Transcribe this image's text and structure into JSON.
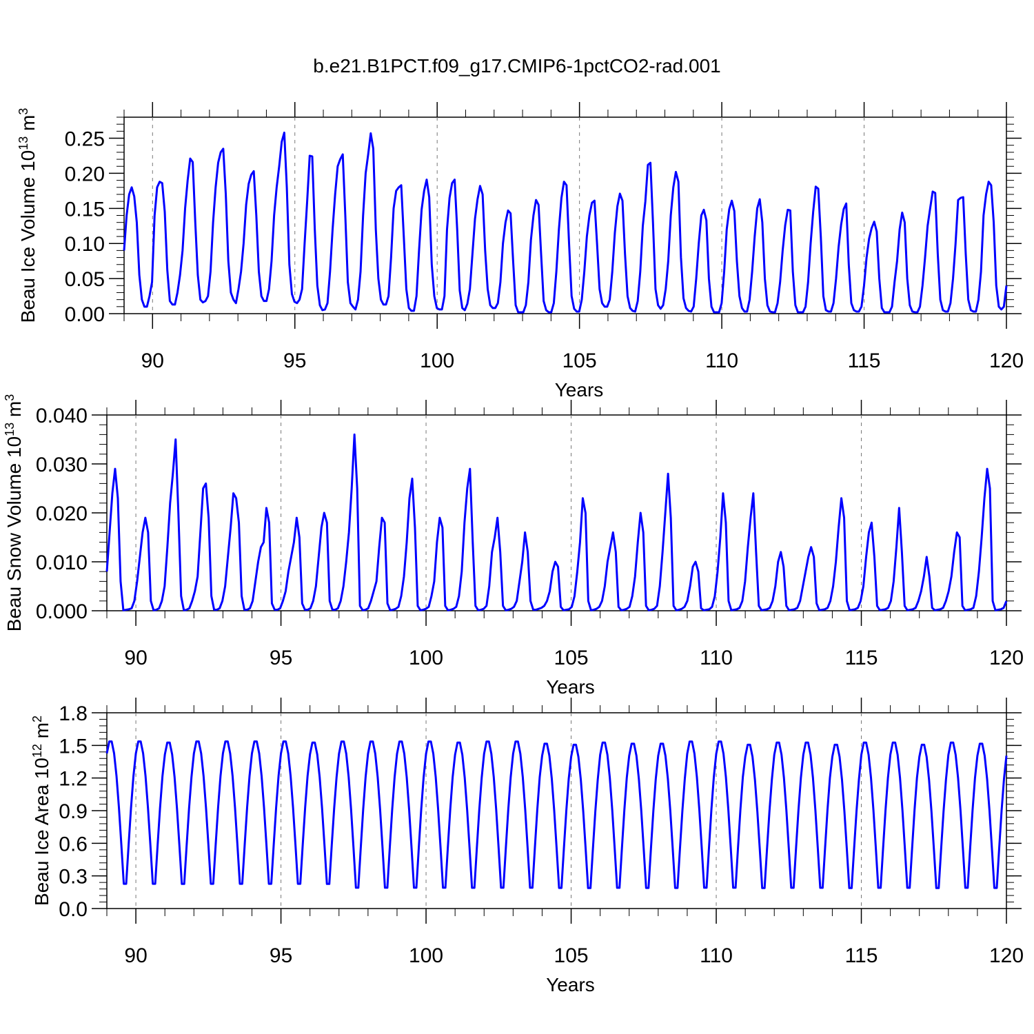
{
  "title": "b.e21.B1PCT.f09_g17.CMIP6-1pctCO2-rad.001",
  "series_color": "#0000ff",
  "chart_data": [
    {
      "type": "line",
      "ylabel": "Beau Ice Volume 10",
      "ylabel_exp": "13",
      "ylabel_unit": " m",
      "ylabel_unit_exp": "3",
      "xlabel": "Years",
      "xlim": [
        89.0,
        120.0
      ],
      "ylim": [
        0.0,
        0.28
      ],
      "xticks": [
        "90",
        "95",
        "100",
        "105",
        "110",
        "115",
        "120"
      ],
      "yticks": [
        "0.00",
        "0.05",
        "0.10",
        "0.15",
        "0.20",
        "0.25"
      ],
      "grid": "vertical dashed at major x ticks",
      "year_start": 89,
      "series": [
        {
          "values": [
            0.09,
            0.14,
            0.17,
            0.18,
            0.167,
            0.13,
            0.055,
            0.02,
            0.01,
            0.01,
            0.025,
            0.045,
            0.14,
            0.18,
            0.188,
            0.186,
            0.145,
            0.062,
            0.018,
            0.013,
            0.013,
            0.03,
            0.055,
            0.09,
            0.15,
            0.19,
            0.221,
            0.216,
            0.13,
            0.055,
            0.02,
            0.016,
            0.018,
            0.025,
            0.06,
            0.13,
            0.18,
            0.215,
            0.23,
            0.235,
            0.17,
            0.075,
            0.03,
            0.02,
            0.015,
            0.035,
            0.06,
            0.1,
            0.155,
            0.185,
            0.198,
            0.203,
            0.14,
            0.06,
            0.025,
            0.018,
            0.018,
            0.035,
            0.075,
            0.14,
            0.18,
            0.21,
            0.245,
            0.258,
            0.18,
            0.07,
            0.028,
            0.017,
            0.015,
            0.02,
            0.035,
            0.1,
            0.16,
            0.225,
            0.224,
            0.12,
            0.04,
            0.012,
            0.005,
            0.006,
            0.015,
            0.06,
            0.12,
            0.17,
            0.21,
            0.22,
            0.227,
            0.14,
            0.045,
            0.015,
            0.01,
            0.006,
            0.02,
            0.06,
            0.14,
            0.2,
            0.227,
            0.257,
            0.235,
            0.12,
            0.05,
            0.02,
            0.013,
            0.013,
            0.025,
            0.08,
            0.15,
            0.175,
            0.18,
            0.183,
            0.11,
            0.035,
            0.008,
            0.004,
            0.004,
            0.025,
            0.09,
            0.148,
            0.175,
            0.191,
            0.166,
            0.07,
            0.025,
            0.008,
            0.006,
            0.006,
            0.025,
            0.12,
            0.165,
            0.186,
            0.191,
            0.12,
            0.033,
            0.008,
            0.005,
            0.014,
            0.035,
            0.085,
            0.135,
            0.163,
            0.182,
            0.17,
            0.09,
            0.035,
            0.012,
            0.008,
            0.008,
            0.015,
            0.045,
            0.1,
            0.13,
            0.147,
            0.143,
            0.075,
            0.012,
            0.002,
            0.002,
            0.002,
            0.012,
            0.045,
            0.105,
            0.14,
            0.162,
            0.155,
            0.085,
            0.018,
            0.005,
            0.002,
            0.002,
            0.015,
            0.06,
            0.12,
            0.165,
            0.188,
            0.183,
            0.1,
            0.025,
            0.007,
            0.003,
            0.003,
            0.02,
            0.06,
            0.11,
            0.14,
            0.158,
            0.161,
            0.1,
            0.035,
            0.015,
            0.01,
            0.01,
            0.02,
            0.06,
            0.115,
            0.153,
            0.171,
            0.161,
            0.085,
            0.025,
            0.008,
            0.004,
            0.003,
            0.018,
            0.06,
            0.125,
            0.16,
            0.212,
            0.215,
            0.13,
            0.035,
            0.012,
            0.007,
            0.012,
            0.035,
            0.075,
            0.14,
            0.18,
            0.202,
            0.188,
            0.08,
            0.022,
            0.008,
            0.004,
            0.003,
            0.01,
            0.05,
            0.1,
            0.14,
            0.148,
            0.133,
            0.05,
            0.01,
            0.002,
            0.002,
            0.002,
            0.015,
            0.06,
            0.12,
            0.149,
            0.161,
            0.146,
            0.075,
            0.025,
            0.008,
            0.003,
            0.003,
            0.02,
            0.06,
            0.11,
            0.15,
            0.163,
            0.13,
            0.05,
            0.012,
            0.003,
            0.002,
            0.002,
            0.015,
            0.045,
            0.09,
            0.126,
            0.148,
            0.147,
            0.06,
            0.012,
            0.002,
            0.002,
            0.002,
            0.01,
            0.045,
            0.1,
            0.145,
            0.181,
            0.178,
            0.11,
            0.025,
            0.005,
            0.003,
            0.003,
            0.015,
            0.05,
            0.095,
            0.127,
            0.149,
            0.157,
            0.07,
            0.015,
            0.005,
            0.003,
            0.003,
            0.01,
            0.04,
            0.08,
            0.107,
            0.122,
            0.131,
            0.117,
            0.05,
            0.008,
            0.002,
            0.002,
            0.002,
            0.01,
            0.045,
            0.075,
            0.12,
            0.144,
            0.13,
            0.05,
            0.012,
            0.003,
            0.002,
            0.002,
            0.01,
            0.04,
            0.08,
            0.125,
            0.15,
            0.174,
            0.172,
            0.085,
            0.02,
            0.005,
            0.003,
            0.003,
            0.015,
            0.05,
            0.1,
            0.162,
            0.165,
            0.166,
            0.085,
            0.02,
            0.005,
            0.003,
            0.003,
            0.02,
            0.06,
            0.14,
            0.17,
            0.188,
            0.183,
            0.13,
            0.04,
            0.01,
            0.006,
            0.01,
            0.04
          ]
        }
      ]
    },
    {
      "type": "line",
      "ylabel": "Beau Snow Volume 10",
      "ylabel_exp": "13",
      "ylabel_unit": " m",
      "ylabel_unit_exp": "3",
      "xlabel": "Years",
      "xlim": [
        89.0,
        120.0
      ],
      "ylim": [
        0.0,
        0.04
      ],
      "xticks": [
        "90",
        "95",
        "100",
        "105",
        "110",
        "115",
        "120"
      ],
      "yticks": [
        "0.000",
        "0.010",
        "0.020",
        "0.030",
        "0.040"
      ],
      "grid": "vertical dashed at major x ticks",
      "year_start": 89,
      "series": [
        {
          "values": [
            0.008,
            0.016,
            0.024,
            0.029,
            0.023,
            0.006,
            0.0001,
            0.0002,
            0.0003,
            0.0005,
            0.002,
            0.006,
            0.011,
            0.016,
            0.019,
            0.016,
            0.002,
            0.0001,
            0.0002,
            0.0005,
            0.002,
            0.005,
            0.013,
            0.022,
            0.028,
            0.035,
            0.02,
            0.003,
            0.0001,
            0.0002,
            0.0005,
            0.002,
            0.004,
            0.007,
            0.016,
            0.025,
            0.026,
            0.019,
            0.003,
            0.0002,
            0.0002,
            0.0005,
            0.002,
            0.005,
            0.011,
            0.017,
            0.024,
            0.023,
            0.018,
            0.003,
            0.0002,
            0.0002,
            0.0005,
            0.002,
            0.006,
            0.01,
            0.013,
            0.014,
            0.021,
            0.018,
            0.0015,
            0.0002,
            0.0002,
            0.0005,
            0.002,
            0.004,
            0.008,
            0.011,
            0.014,
            0.019,
            0.015,
            0.0015,
            0.0002,
            0.0002,
            0.0005,
            0.002,
            0.005,
            0.011,
            0.017,
            0.02,
            0.018,
            0.002,
            0.0002,
            0.0002,
            0.0005,
            0.002,
            0.005,
            0.01,
            0.016,
            0.025,
            0.036,
            0.025,
            0.001,
            0.0001,
            0.0002,
            0.0005,
            0.002,
            0.004,
            0.006,
            0.013,
            0.019,
            0.018,
            0.0015,
            0.0001,
            0.0002,
            0.0004,
            0.0008,
            0.003,
            0.007,
            0.014,
            0.023,
            0.027,
            0.017,
            0.001,
            0.0001,
            0.0002,
            0.0004,
            0.0008,
            0.003,
            0.006,
            0.014,
            0.019,
            0.017,
            0.001,
            0.0001,
            0.0002,
            0.0004,
            0.0008,
            0.003,
            0.008,
            0.018,
            0.025,
            0.029,
            0.014,
            0.001,
            0.0001,
            0.0002,
            0.0004,
            0.001,
            0.005,
            0.012,
            0.015,
            0.019,
            0.012,
            0.001,
            0.0001,
            0.0002,
            0.0004,
            0.0008,
            0.002,
            0.006,
            0.01,
            0.016,
            0.012,
            0.002,
            0.0002,
            0.0002,
            0.0004,
            0.0006,
            0.001,
            0.002,
            0.004,
            0.008,
            0.01,
            0.009,
            0.0008,
            0.0001,
            0.0002,
            0.0003,
            0.0008,
            0.003,
            0.008,
            0.014,
            0.023,
            0.02,
            0.002,
            0.0001,
            0.0002,
            0.0004,
            0.0008,
            0.002,
            0.005,
            0.01,
            0.013,
            0.016,
            0.012,
            0.0008,
            0.0001,
            0.0002,
            0.0004,
            0.0008,
            0.003,
            0.007,
            0.014,
            0.02,
            0.016,
            0.001,
            0.0001,
            0.0002,
            0.0004,
            0.001,
            0.005,
            0.012,
            0.02,
            0.028,
            0.019,
            0.001,
            0.0001,
            0.0002,
            0.0004,
            0.0008,
            0.002,
            0.005,
            0.009,
            0.01,
            0.008,
            0.0005,
            0.0001,
            0.0002,
            0.0003,
            0.0008,
            0.003,
            0.008,
            0.015,
            0.024,
            0.018,
            0.002,
            0.0001,
            0.0002,
            0.0003,
            0.0006,
            0.002,
            0.006,
            0.013,
            0.019,
            0.024,
            0.012,
            0.001,
            0.0001,
            0.0002,
            0.0003,
            0.0006,
            0.002,
            0.005,
            0.01,
            0.012,
            0.009,
            0.001,
            0.0001,
            0.0002,
            0.0003,
            0.0006,
            0.002,
            0.005,
            0.008,
            0.011,
            0.013,
            0.011,
            0.0015,
            0.0001,
            0.0002,
            0.0003,
            0.0006,
            0.002,
            0.005,
            0.01,
            0.017,
            0.023,
            0.019,
            0.002,
            0.0001,
            0.0002,
            0.0003,
            0.0006,
            0.002,
            0.005,
            0.011,
            0.016,
            0.018,
            0.011,
            0.001,
            0.0001,
            0.0002,
            0.0003,
            0.0006,
            0.002,
            0.006,
            0.013,
            0.021,
            0.012,
            0.001,
            0.0001,
            0.0002,
            0.0003,
            0.0006,
            0.002,
            0.004,
            0.007,
            0.011,
            0.007,
            0.0006,
            0.0001,
            0.0002,
            0.0003,
            0.0006,
            0.002,
            0.004,
            0.007,
            0.012,
            0.016,
            0.015,
            0.001,
            0.0001,
            0.0002,
            0.0003,
            0.0006,
            0.003,
            0.008,
            0.015,
            0.023,
            0.029,
            0.025,
            0.002,
            0.0001,
            0.0002,
            0.0003,
            0.0006,
            0.002
          ]
        }
      ]
    },
    {
      "type": "line",
      "ylabel": "Beau Ice Area 10",
      "ylabel_exp": "12",
      "ylabel_unit": " m",
      "ylabel_unit_exp": "2",
      "xlabel": "Years",
      "xlim": [
        89.0,
        120.0
      ],
      "ylim": [
        0.0,
        1.8
      ],
      "xticks": [
        "90",
        "95",
        "100",
        "105",
        "110",
        "115",
        "120"
      ],
      "yticks": [
        "0.0",
        "0.3",
        "0.6",
        "0.9",
        "1.2",
        "1.5",
        "1.8"
      ],
      "grid": "vertical dashed at major x ticks",
      "year_start": 89,
      "amplitude_series": true
    }
  ]
}
